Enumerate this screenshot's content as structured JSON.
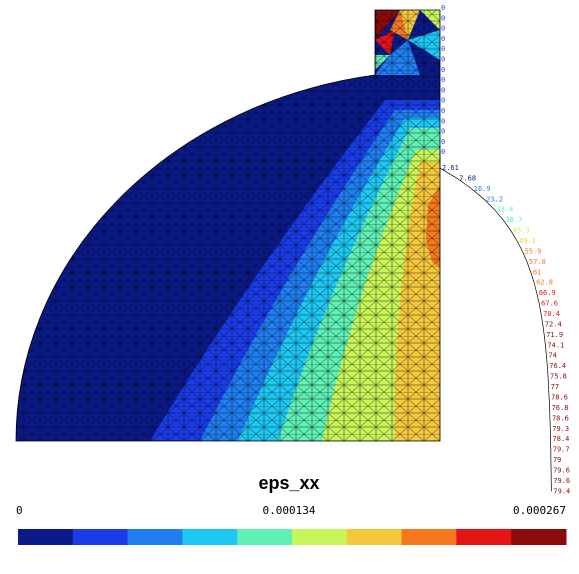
{
  "plot": {
    "title": "eps_xx",
    "colorbar": {
      "labels": [
        "0",
        "0.000134",
        "0.000267"
      ],
      "colors": [
        "#0a1a8a",
        "#1a3ce8",
        "#1f7ef0",
        "#1ec8f5",
        "#5ff0b5",
        "#c8f55a",
        "#f5c83c",
        "#f5781e",
        "#e61414",
        "#8c0a0a"
      ]
    },
    "edge_labels": [
      "0",
      "0",
      "0",
      "0",
      "0",
      "0",
      "0",
      "0",
      "0",
      "0",
      "0",
      "0",
      "0",
      "0",
      "0"
    ],
    "profile_labels": [
      "2.61",
      "7.68",
      "16.9",
      "23.2",
      "33.4",
      "38.7",
      "45.3",
      "49.1",
      "55.9",
      "57.8",
      "61",
      "62.8",
      "66.9",
      "67.6",
      "70.4",
      "72.4",
      "71.9",
      "74.1",
      "74",
      "76.4",
      "75.8",
      "77",
      "78.6",
      "76.8",
      "78.6",
      "79.3",
      "78.4",
      "79.7",
      "79",
      "79.6",
      "79.6",
      "79.4"
    ]
  }
}
